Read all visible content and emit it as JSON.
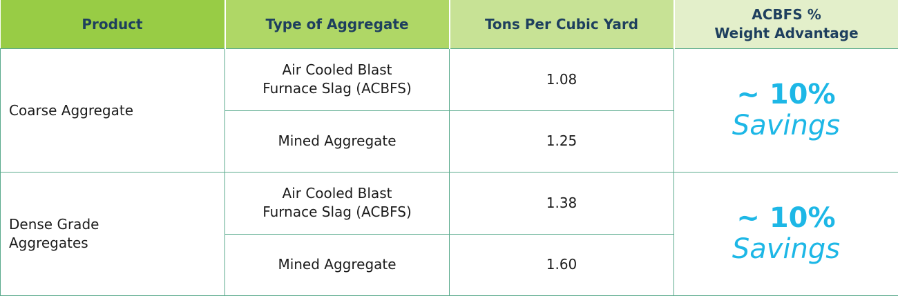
{
  "table": {
    "header": [
      "Product",
      "Type of Aggregate",
      "Tons Per Cubic Yard",
      "ACBFS %\nWeight Advantage"
    ],
    "groups": [
      {
        "product": "Coarse Aggregate",
        "items": [
          {
            "type": "Air Cooled Blast\nFurnace Slag (ACBFS)",
            "tons": "1.08"
          },
          {
            "type": "Mined Aggregate",
            "tons": "1.25"
          }
        ],
        "advantage": {
          "amount": "~ 10%",
          "label": "Savings"
        }
      },
      {
        "product": "Dense Grade\nAggregates",
        "items": [
          {
            "type": "Air Cooled Blast\nFurnace Slag (ACBFS)",
            "tons": "1.38"
          },
          {
            "type": "Mined Aggregate",
            "tons": "1.60"
          }
        ],
        "advantage": {
          "amount": "~ 10%",
          "label": "Savings"
        }
      }
    ]
  }
}
